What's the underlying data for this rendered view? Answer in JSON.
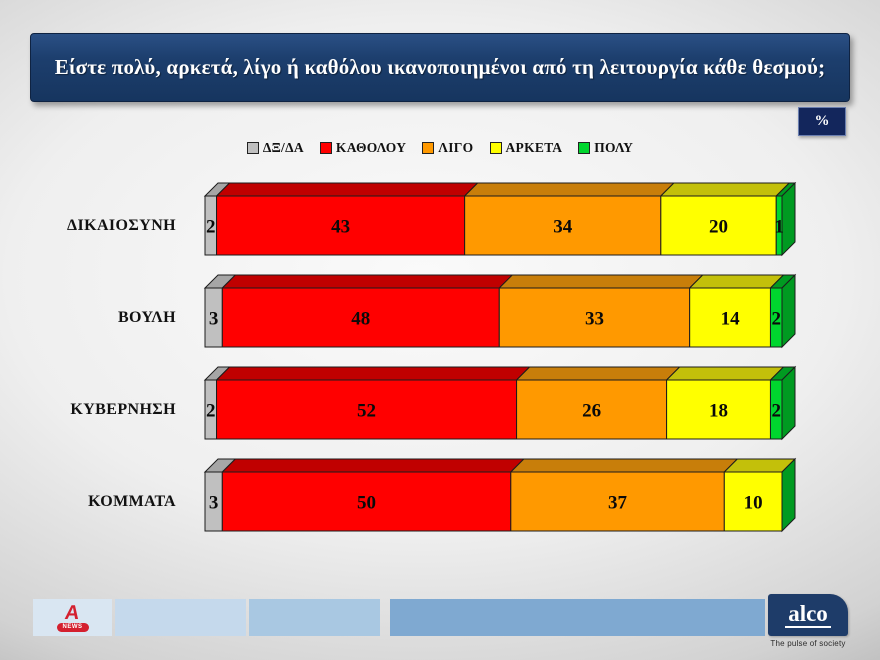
{
  "title": "Είστε πολύ, αρκετά, λίγο ή καθόλου ικανοποιημένοι από τη λειτουργία κάθε θεσμού;",
  "percent_badge": "%",
  "chart_data": {
    "type": "bar",
    "subtype": "stacked-horizontal-3d",
    "unit": "percent",
    "title": "Είστε πολύ, αρκετά, λίγο ή καθόλου ικανοποιημένοι από τη λειτουργία κάθε θεσμού;",
    "categories": [
      "ΔΙΚΑΙΟΣΥΝΗ",
      "ΒΟΥΛΗ",
      "ΚΥΒΕΡΝΗΣΗ",
      "ΚΟΜΜΑΤΑ"
    ],
    "series": [
      {
        "name": "ΔΞ/ΔΑ",
        "color": "#C0C0C0",
        "top_color": "#A6A6A6",
        "values": [
          2,
          3,
          2,
          3
        ]
      },
      {
        "name": "ΚΑΘΟΛΟΥ",
        "color": "#FF0000",
        "top_color": "#C00000",
        "values": [
          43,
          48,
          52,
          50
        ]
      },
      {
        "name": "ΛΙΓΟ",
        "color": "#FF9900",
        "top_color": "#C87E0A",
        "values": [
          34,
          33,
          26,
          37
        ]
      },
      {
        "name": "ΑΡΚΕΤΑ",
        "color": "#FFFF00",
        "top_color": "#C3C00A",
        "values": [
          20,
          14,
          18,
          10
        ]
      },
      {
        "name": "ΠΟΛΥ",
        "color": "#00D62E",
        "top_color": "#009A21",
        "values": [
          1,
          2,
          2,
          0
        ]
      }
    ],
    "end_cap_color": "#009A21",
    "xlim": [
      0,
      100
    ],
    "legend_position": "top",
    "value_labels": true
  },
  "footer": {
    "strip_colors": [
      "#D9E6F2",
      "#C5D9EC",
      "#A9C8E2",
      "#7FA9D1"
    ],
    "alpha_news": {
      "letter": "A",
      "news_label": "NEWS"
    },
    "alco": {
      "wordmark": "alco",
      "tagline": "The pulse of society",
      "bg_color": "#1e3c69"
    }
  }
}
